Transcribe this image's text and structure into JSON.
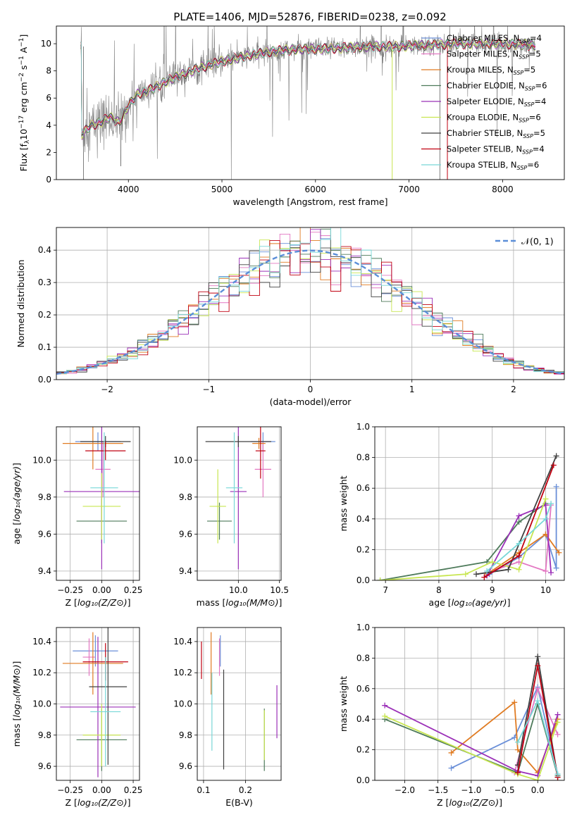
{
  "figure_title": "PLATE=1406, MJD=52876, FIBERID=0238, z=0.092",
  "series_colors": {
    "Chabrier MILES": "#6a8fd8",
    "Salpeter MILES": "#e377c2",
    "Kroupa MILES": "#e07b22",
    "Chabrier ELODIE": "#4d7a5a",
    "Salpeter ELODIE": "#9b30b8",
    "Kroupa ELODIE": "#c8e650",
    "Chabrier STELIB": "#404040",
    "Salpeter STELIB": "#c00010",
    "Kroupa STELIB": "#78d8d8"
  },
  "chart_data": [
    {
      "id": "spectrum",
      "type": "line",
      "xlabel": "wavelength [Angstrom, rest frame]",
      "ylabel": "Flux [f_λ 10^-17 erg cm^-2 s^-1 A^-1]",
      "xlim": [
        3230,
        8660
      ],
      "ylim": [
        0,
        11.3
      ],
      "xticks": [
        4000,
        5000,
        6000,
        7000,
        8000
      ],
      "yticks": [
        0,
        2,
        4,
        6,
        8,
        10
      ],
      "grid": false,
      "legend_position": "top-right",
      "legend": [
        {
          "name": "Chabrier MILES",
          "nssp": "4"
        },
        {
          "name": "Salpeter MILES",
          "nssp": "5"
        },
        {
          "name": "Kroupa MILES",
          "nssp": "5"
        },
        {
          "name": "Chabrier ELODIE",
          "nssp": "6"
        },
        {
          "name": "Salpeter ELODIE",
          "nssp": "4"
        },
        {
          "name": "Kroupa ELODIE",
          "nssp": "6"
        },
        {
          "name": "Chabrier STELIB",
          "nssp": "5"
        },
        {
          "name": "Salpeter STELIB",
          "nssp": "4"
        },
        {
          "name": "Kroupa STELIB",
          "nssp": "6"
        }
      ],
      "continuum_points": [
        [
          3500,
          3.3
        ],
        [
          3600,
          4.0
        ],
        [
          3700,
          4.2
        ],
        [
          3800,
          4.6
        ],
        [
          3900,
          4.2
        ],
        [
          4000,
          5.4
        ],
        [
          4100,
          6.3
        ],
        [
          4200,
          6.5
        ],
        [
          4400,
          7.2
        ],
        [
          4600,
          7.8
        ],
        [
          4800,
          8.3
        ],
        [
          5000,
          8.7
        ],
        [
          5200,
          9.0
        ],
        [
          5500,
          9.4
        ],
        [
          5800,
          9.6
        ],
        [
          6000,
          9.6
        ],
        [
          6300,
          9.7
        ],
        [
          6600,
          9.8
        ],
        [
          6900,
          9.8
        ],
        [
          7200,
          9.9
        ],
        [
          7500,
          10.0
        ],
        [
          7800,
          10.0
        ],
        [
          8000,
          10.0
        ],
        [
          8300,
          9.9
        ]
      ]
    },
    {
      "id": "residuals",
      "type": "step",
      "xlabel": "(data-model)/error",
      "ylabel": "Normed distribution",
      "xlim": [
        -2.5,
        2.5
      ],
      "ylim": [
        0,
        0.47
      ],
      "xticks": [
        -2,
        -1,
        0,
        1,
        2
      ],
      "yticks": [
        0.0,
        0.1,
        0.2,
        0.3,
        0.4
      ],
      "grid": true,
      "legend_position": "top-right",
      "legend_label": "𝒩(0, 1)"
    },
    {
      "id": "age-vs-Z",
      "type": "errorbar",
      "xlabel": "Z [log10(Z/Z⊙)]",
      "ylabel": "age [log10(age/yr)]",
      "xlim": [
        -0.36,
        0.3
      ],
      "ylim": [
        9.35,
        10.18
      ],
      "xticks": [
        -0.25,
        0.0,
        0.25
      ],
      "yticks": [
        9.4,
        9.6,
        9.8,
        10.0
      ],
      "grid": true,
      "points": [
        {
          "series": "Chabrier MILES",
          "x": -0.03,
          "xerr": 0.18,
          "y": 10.1,
          "yerr": 0.05
        },
        {
          "series": "Salpeter MILES",
          "x": 0.01,
          "xerr": 0.06,
          "y": 9.95,
          "yerr": 0.15
        },
        {
          "series": "Kroupa MILES",
          "x": -0.07,
          "xerr": 0.24,
          "y": 10.09,
          "yerr": 0.14
        },
        {
          "series": "Chabrier ELODIE",
          "x": 0.0,
          "xerr": 0.2,
          "y": 9.67,
          "yerr": 0.12
        },
        {
          "series": "Salpeter ELODIE",
          "x": 0.0,
          "xerr": 0.3,
          "y": 9.83,
          "yerr": 0.42
        },
        {
          "series": "Kroupa ELODIE",
          "x": 0.0,
          "xerr": 0.15,
          "y": 9.75,
          "yerr": 0.18
        },
        {
          "series": "Chabrier STELIB",
          "x": 0.03,
          "xerr": 0.2,
          "y": 10.1,
          "yerr": 0.03
        },
        {
          "series": "Salpeter STELIB",
          "x": 0.03,
          "xerr": 0.16,
          "y": 10.05,
          "yerr": 0.05
        },
        {
          "series": "Kroupa STELIB",
          "x": 0.02,
          "xerr": 0.11,
          "y": 9.85,
          "yerr": 0.3
        }
      ]
    },
    {
      "id": "age-vs-mass",
      "type": "errorbar",
      "xlabel": "mass [log10(M/M⊙)]",
      "ylabel": "",
      "xlim": [
        9.5,
        10.52
      ],
      "ylim": [
        9.35,
        10.18
      ],
      "xticks": [
        10.0,
        10.5
      ],
      "yticks": [
        9.4,
        9.6,
        9.8,
        10.0
      ],
      "grid": true,
      "points": [
        {
          "series": "Chabrier MILES",
          "x": 10.3,
          "xerr": 0.15,
          "y": 10.1,
          "yerr": 0.05
        },
        {
          "series": "Salpeter MILES",
          "x": 10.3,
          "xerr": 0.1,
          "y": 9.95,
          "yerr": 0.15
        },
        {
          "series": "Kroupa MILES",
          "x": 10.25,
          "xerr": 0.08,
          "y": 10.09,
          "yerr": 0.03
        },
        {
          "series": "Chabrier ELODIE",
          "x": 9.77,
          "xerr": 0.15,
          "y": 9.67,
          "yerr": 0.1
        },
        {
          "series": "Salpeter ELODIE",
          "x": 10.0,
          "xerr": 0.1,
          "y": 9.83,
          "yerr": 0.42
        },
        {
          "series": "Kroupa ELODIE",
          "x": 9.75,
          "xerr": 0.1,
          "y": 9.75,
          "yerr": 0.2
        },
        {
          "series": "Chabrier STELIB",
          "x": 10.0,
          "xerr": 0.4,
          "y": 10.1,
          "yerr": 0.03
        },
        {
          "series": "Salpeter STELIB",
          "x": 10.27,
          "xerr": 0.06,
          "y": 10.05,
          "yerr": 0.15
        },
        {
          "series": "Kroupa STELIB",
          "x": 9.95,
          "xerr": 0.1,
          "y": 9.85,
          "yerr": 0.3
        }
      ]
    },
    {
      "id": "weight-vs-age",
      "type": "line",
      "xlabel": "age [log10(age/yr)]",
      "ylabel": "mass weight",
      "xlim": [
        6.8,
        10.35
      ],
      "ylim": [
        0,
        1.0
      ],
      "xticks": [
        7,
        8,
        9,
        10
      ],
      "yticks": [
        0.0,
        0.2,
        0.4,
        0.6,
        0.8,
        1.0
      ],
      "grid": true,
      "series": [
        {
          "name": "Chabrier MILES",
          "points": [
            [
              8.95,
              0.04
            ],
            [
              9.5,
              0.15
            ],
            [
              10.0,
              0.3
            ],
            [
              10.2,
              0.08
            ],
            [
              10.2,
              0.61
            ]
          ]
        },
        {
          "name": "Salpeter MILES",
          "points": [
            [
              8.9,
              0.05
            ],
            [
              9.5,
              0.12
            ],
            [
              10.0,
              0.06
            ],
            [
              10.1,
              0.49
            ]
          ]
        },
        {
          "name": "Kroupa MILES",
          "points": [
            [
              8.9,
              0.04
            ],
            [
              9.5,
              0.18
            ],
            [
              10.0,
              0.3
            ],
            [
              10.25,
              0.18
            ]
          ]
        },
        {
          "name": "Chabrier ELODIE",
          "points": [
            [
              6.9,
              0.0
            ],
            [
              8.9,
              0.12
            ],
            [
              9.5,
              0.38
            ],
            [
              10.0,
              0.5
            ]
          ]
        },
        {
          "name": "Salpeter ELODIE",
          "points": [
            [
              8.9,
              0.03
            ],
            [
              9.5,
              0.42
            ],
            [
              10.0,
              0.49
            ],
            [
              10.1,
              0.05
            ]
          ]
        },
        {
          "name": "Kroupa ELODIE",
          "points": [
            [
              6.9,
              0.0
            ],
            [
              8.5,
              0.04
            ],
            [
              9.0,
              0.12
            ],
            [
              9.5,
              0.07
            ],
            [
              10.0,
              0.53
            ]
          ]
        },
        {
          "name": "Chabrier STELIB",
          "points": [
            [
              8.7,
              0.04
            ],
            [
              9.3,
              0.07
            ],
            [
              10.2,
              0.81
            ]
          ]
        },
        {
          "name": "Salpeter STELIB",
          "points": [
            [
              8.85,
              0.02
            ],
            [
              9.5,
              0.16
            ],
            [
              10.15,
              0.75
            ]
          ]
        },
        {
          "name": "Kroupa STELIB",
          "points": [
            [
              8.9,
              0.06
            ],
            [
              9.5,
              0.24
            ],
            [
              10.0,
              0.4
            ],
            [
              10.1,
              0.5
            ]
          ]
        }
      ]
    },
    {
      "id": "mass-vs-Z",
      "type": "errorbar",
      "xlabel": "Z [log10(Z/Z⊙)]",
      "ylabel": "mass [log10(M/M⊙)]",
      "xlim": [
        -0.36,
        0.3
      ],
      "ylim": [
        9.51,
        10.49
      ],
      "xticks": [
        -0.25,
        0.0,
        0.25
      ],
      "yticks": [
        9.6,
        9.8,
        10.0,
        10.2,
        10.4
      ],
      "grid": true,
      "points": [
        {
          "series": "Chabrier MILES",
          "x": -0.05,
          "xerr": 0.18,
          "y": 10.34,
          "yerr": 0.1
        },
        {
          "series": "Salpeter MILES",
          "x": -0.1,
          "xerr": 0.05,
          "y": 10.3,
          "yerr": 0.12
        },
        {
          "series": "Kroupa MILES",
          "x": -0.07,
          "xerr": 0.24,
          "y": 10.26,
          "yerr": 0.2
        },
        {
          "series": "Chabrier ELODIE",
          "x": 0.0,
          "xerr": 0.2,
          "y": 9.77,
          "yerr": 0.2
        },
        {
          "series": "Salpeter ELODIE",
          "x": -0.03,
          "xerr": 0.3,
          "y": 9.98,
          "yerr": 0.45
        },
        {
          "series": "Kroupa ELODIE",
          "x": 0.0,
          "xerr": 0.15,
          "y": 9.8,
          "yerr": 0.2
        },
        {
          "series": "Chabrier STELIB",
          "x": 0.05,
          "xerr": 0.15,
          "y": 10.11,
          "yerr": 0.5
        },
        {
          "series": "Salpeter STELIB",
          "x": 0.03,
          "xerr": 0.18,
          "y": 10.27,
          "yerr": 0.12
        },
        {
          "series": "Kroupa STELIB",
          "x": 0.03,
          "xerr": 0.12,
          "y": 9.95,
          "yerr": 0.35
        }
      ]
    },
    {
      "id": "mass-vs-ebv",
      "type": "errorbar",
      "xlabel": "E(B-V)",
      "ylabel": "",
      "xlim": [
        0.085,
        0.285
      ],
      "ylim": [
        9.51,
        10.49
      ],
      "xticks": [
        0.1,
        0.2
      ],
      "yticks": [
        9.6,
        9.8,
        10.0,
        10.2,
        10.4
      ],
      "grid": true,
      "points": [
        {
          "series": "Chabrier MILES",
          "x": 0.14,
          "y": 10.34,
          "yerr": 0.1
        },
        {
          "series": "Salpeter MILES",
          "x": 0.138,
          "y": 10.3,
          "yerr": 0.12
        },
        {
          "series": "Kroupa MILES",
          "x": 0.118,
          "y": 10.26,
          "yerr": 0.2
        },
        {
          "series": "Chabrier ELODIE",
          "x": 0.245,
          "y": 9.77,
          "yerr": 0.2
        },
        {
          "series": "Salpeter ELODIE",
          "x": 0.275,
          "y": 9.95,
          "yerr": 0.17
        },
        {
          "series": "Kroupa ELODIE",
          "x": 0.245,
          "y": 9.8,
          "yerr": 0.16
        },
        {
          "series": "Chabrier STELIB",
          "x": 0.148,
          "y": 9.9,
          "yerr": 0.32
        },
        {
          "series": "Salpeter STELIB",
          "x": 0.095,
          "y": 10.28,
          "yerr": 0.12
        },
        {
          "series": "Kroupa STELIB",
          "x": 0.12,
          "y": 9.95,
          "yerr": 0.25
        }
      ]
    },
    {
      "id": "weight-vs-Z",
      "type": "line",
      "xlabel": "Z [log10(Z/Z⊙)]",
      "ylabel": "mass weight",
      "xlim": [
        -2.45,
        0.4
      ],
      "ylim": [
        0,
        1.0
      ],
      "xticks": [
        -2.0,
        -1.5,
        -1.0,
        -0.5,
        0.0
      ],
      "yticks": [
        0.0,
        0.2,
        0.4,
        0.6,
        0.8,
        1.0
      ],
      "grid": true,
      "series": [
        {
          "name": "Chabrier MILES",
          "points": [
            [
              -1.3,
              0.08
            ],
            [
              -0.35,
              0.28
            ],
            [
              0.0,
              0.61
            ],
            [
              0.3,
              0.04
            ]
          ]
        },
        {
          "name": "Salpeter MILES",
          "points": [
            [
              -0.35,
              0.05
            ],
            [
              0.0,
              0.6
            ],
            [
              0.3,
              0.3
            ]
          ]
        },
        {
          "name": "Kroupa MILES",
          "points": [
            [
              -1.3,
              0.18
            ],
            [
              -0.35,
              0.51
            ],
            [
              -0.3,
              0.2
            ],
            [
              0.0,
              0.05
            ],
            [
              0.3,
              0.4
            ]
          ]
        },
        {
          "name": "Chabrier ELODIE",
          "points": [
            [
              -2.3,
              0.4
            ],
            [
              -0.3,
              0.05
            ],
            [
              0.0,
              0.5
            ],
            [
              0.3,
              0.03
            ]
          ]
        },
        {
          "name": "Salpeter ELODIE",
          "points": [
            [
              -2.3,
              0.49
            ],
            [
              -0.3,
              0.06
            ],
            [
              0.0,
              0.03
            ],
            [
              0.3,
              0.43
            ]
          ]
        },
        {
          "name": "Kroupa ELODIE",
          "points": [
            [
              -2.3,
              0.42
            ],
            [
              -0.3,
              0.04
            ],
            [
              0.0,
              0.0
            ],
            [
              0.3,
              0.38
            ]
          ]
        },
        {
          "name": "Chabrier STELIB",
          "points": [
            [
              -0.3,
              0.1
            ],
            [
              0.0,
              0.81
            ],
            [
              0.3,
              0.02
            ]
          ]
        },
        {
          "name": "Salpeter STELIB",
          "points": [
            [
              -0.3,
              0.05
            ],
            [
              0.0,
              0.75
            ],
            [
              0.3,
              0.02
            ]
          ]
        },
        {
          "name": "Kroupa STELIB",
          "points": [
            [
              -0.3,
              0.25
            ],
            [
              0.0,
              0.52
            ],
            [
              0.3,
              0.04
            ]
          ]
        }
      ]
    }
  ]
}
